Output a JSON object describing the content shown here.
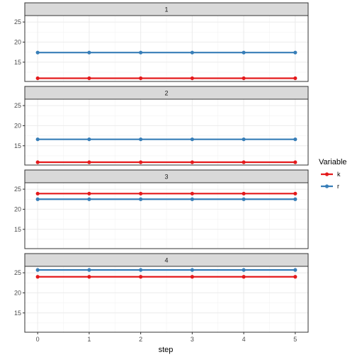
{
  "chart_data": {
    "type": "line",
    "facet_by": "step panel",
    "x": [
      0,
      1,
      2,
      3,
      4,
      5
    ],
    "xlabel": "step",
    "ylabel": "",
    "xlim": [
      -0.25,
      5.25
    ],
    "ylim": [
      10.2,
      26.6
    ],
    "xticks": [
      0,
      1,
      2,
      3,
      4,
      5
    ],
    "yticks": [
      15,
      20,
      25
    ],
    "grid": true,
    "legend": {
      "title": "Variable",
      "placement": "right",
      "entries": [
        {
          "name": "k",
          "color": "#e41a1c"
        },
        {
          "name": "r",
          "color": "#377eb8"
        }
      ]
    },
    "panels": [
      {
        "label": "1",
        "series": [
          {
            "name": "k",
            "values": [
              11,
              11,
              11,
              11,
              11,
              11
            ]
          },
          {
            "name": "r",
            "values": [
              17.4,
              17.4,
              17.4,
              17.4,
              17.4,
              17.4
            ]
          }
        ]
      },
      {
        "label": "2",
        "series": [
          {
            "name": "k",
            "values": [
              10.9,
              10.9,
              10.9,
              10.9,
              10.9,
              10.9
            ]
          },
          {
            "name": "r",
            "values": [
              16.6,
              16.6,
              16.6,
              16.6,
              16.6,
              16.6
            ]
          }
        ]
      },
      {
        "label": "3",
        "series": [
          {
            "name": "k",
            "values": [
              23.9,
              23.9,
              23.9,
              23.9,
              23.9,
              23.9
            ]
          },
          {
            "name": "r",
            "values": [
              22.5,
              22.5,
              22.5,
              22.5,
              22.5,
              22.5
            ]
          }
        ]
      },
      {
        "label": "4",
        "series": [
          {
            "name": "k",
            "values": [
              24,
              24,
              24,
              24,
              24,
              24
            ]
          },
          {
            "name": "r",
            "values": [
              25.7,
              25.7,
              25.7,
              25.7,
              25.7,
              25.7
            ]
          }
        ]
      }
    ]
  }
}
